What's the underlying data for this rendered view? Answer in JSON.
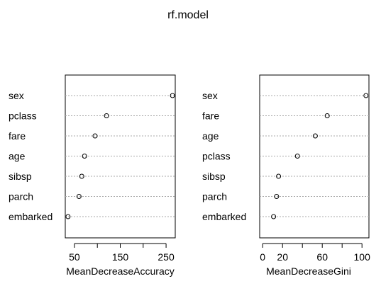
{
  "chart_data": {
    "type": "dotchart",
    "title": "rf.model",
    "panels": [
      {
        "xlabel": "MeanDecreaseAccuracy",
        "categories": [
          "sex",
          "pclass",
          "fare",
          "age",
          "sibsp",
          "parch",
          "embarked"
        ],
        "values": [
          264,
          120,
          95,
          72,
          66,
          60,
          36
        ],
        "xlim": [
          30,
          270
        ],
        "ticks": [
          50,
          100,
          150,
          200,
          250
        ],
        "tick_labels": [
          "50",
          "",
          "150",
          "",
          "250"
        ]
      },
      {
        "xlabel": "MeanDecreaseGini",
        "categories": [
          "sex",
          "fare",
          "age",
          "pclass",
          "sibsp",
          "parch",
          "embarked"
        ],
        "values": [
          104,
          65,
          53,
          35,
          16,
          14,
          11
        ],
        "xlim": [
          -3,
          107
        ],
        "ticks": [
          0,
          20,
          40,
          60,
          80,
          100
        ],
        "tick_labels": [
          "0",
          "20",
          "",
          "60",
          "",
          "100"
        ]
      }
    ]
  }
}
